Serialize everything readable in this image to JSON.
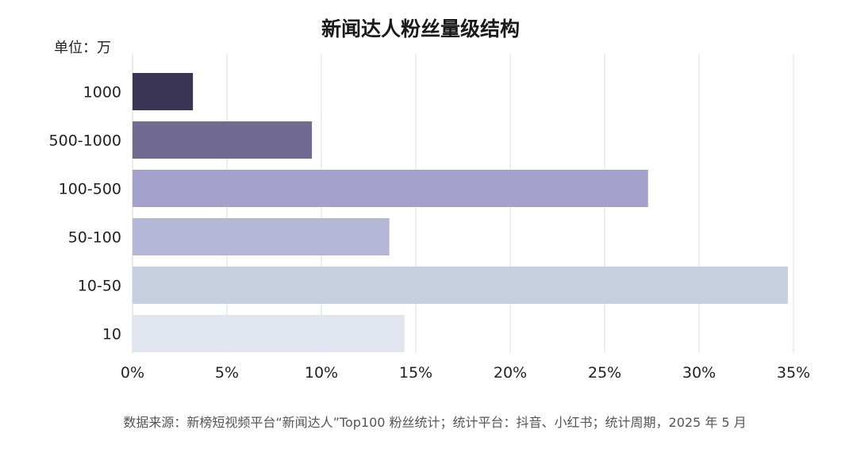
{
  "chart_data": {
    "type": "bar",
    "orientation": "horizontal",
    "title": "新闻达人粉丝量级结构",
    "unit_label": "单位：万",
    "categories": [
      "1000",
      "500-1000",
      "100-500",
      "50-100",
      "10-50",
      "10"
    ],
    "values": [
      3.2,
      9.5,
      27.3,
      13.6,
      34.7,
      14.4
    ],
    "bar_colors": [
      "#3b3555",
      "#726b91",
      "#a3a1cb",
      "#b4b6d6",
      "#c5cfe0",
      "#e1e5ef"
    ],
    "x_ticks": [
      0,
      5,
      10,
      15,
      20,
      25,
      30,
      35
    ],
    "x_tick_labels": [
      "0%",
      "5%",
      "10%",
      "15%",
      "20%",
      "25%",
      "30%",
      "35%"
    ],
    "xlim": [
      0,
      35
    ],
    "grid": true,
    "source": "数据来源：新榜短视频平台“新闻达人”Top100 粉丝统计；统计平台：抖音、小红书；统计周期，2025 年 5 月"
  }
}
